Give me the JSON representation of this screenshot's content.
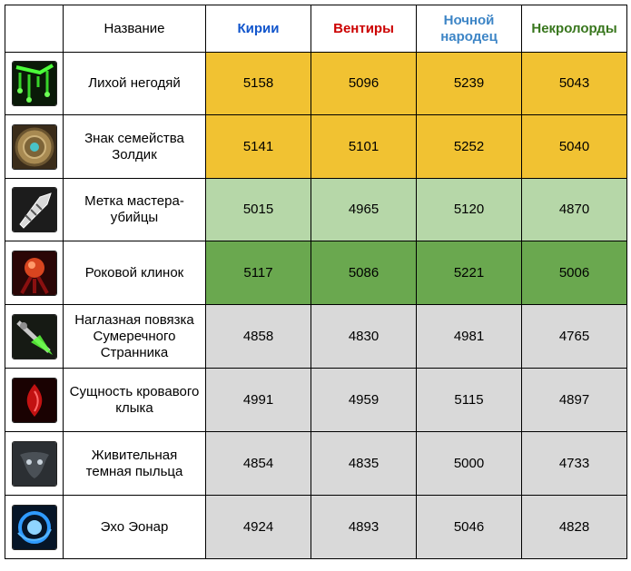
{
  "header": {
    "name_label": "Название",
    "columns": [
      {
        "label": "Кирии",
        "color": "#1155cc"
      },
      {
        "label": "Вентиры",
        "color": "#cc0000"
      },
      {
        "label": "Ночной народец",
        "color": "#3d85c6"
      },
      {
        "label": "Некролорды",
        "color": "#38761d"
      }
    ]
  },
  "rows": [
    {
      "name": "Лихой негодяй",
      "icon": "green-slime-icon",
      "values": [
        "5158",
        "5096",
        "5239",
        "5043"
      ],
      "highlight": "#f1c232"
    },
    {
      "name": "Знак семейства Золдик",
      "icon": "bronze-medallion-icon",
      "values": [
        "5141",
        "5101",
        "5252",
        "5040"
      ],
      "highlight": "#f1c232"
    },
    {
      "name": "Метка мастера-убийцы",
      "icon": "silver-dagger-icon",
      "values": [
        "5015",
        "4965",
        "5120",
        "4870"
      ],
      "highlight": "#b6d7a8"
    },
    {
      "name": "Роковой клинок",
      "icon": "red-orb-blade-icon",
      "values": [
        "5117",
        "5086",
        "5221",
        "5006"
      ],
      "highlight": "#6aa84f"
    },
    {
      "name": "Наглазная повязка Сумеречного Странника",
      "icon": "green-blade-icon",
      "values": [
        "4858",
        "4830",
        "4981",
        "4765"
      ],
      "highlight": "#d9d9d9"
    },
    {
      "name": "Сущность кровавого клыка",
      "icon": "blood-fang-icon",
      "values": [
        "4991",
        "4959",
        "5115",
        "4897"
      ],
      "highlight": "#d9d9d9"
    },
    {
      "name": "Живительная темная пыльца",
      "icon": "dark-pollen-icon",
      "values": [
        "4854",
        "4835",
        "5000",
        "4733"
      ],
      "highlight": "#d9d9d9"
    },
    {
      "name": "Эхо Эонар",
      "icon": "blue-swirl-icon",
      "values": [
        "4924",
        "4893",
        "5046",
        "4828"
      ],
      "highlight": "#d9d9d9"
    }
  ]
}
